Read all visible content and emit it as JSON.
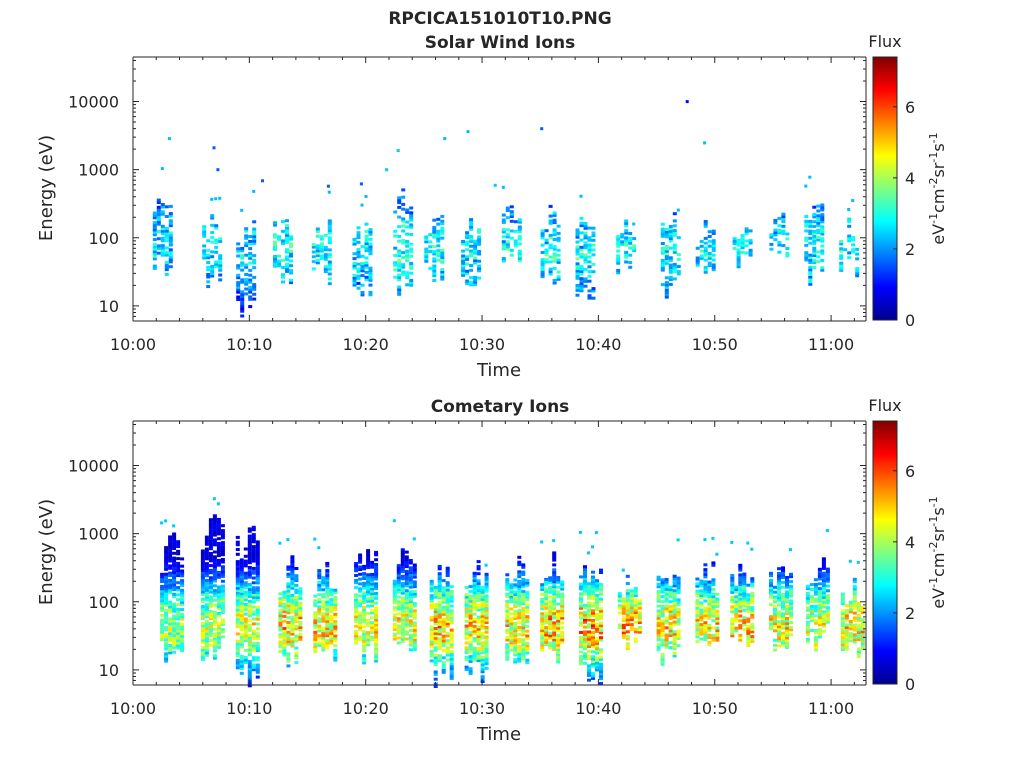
{
  "figure": {
    "filename": "RPCICA151010T10.PNG"
  },
  "colorbar": {
    "label": "Flux",
    "units_parts": [
      "eV",
      "-1",
      "cm",
      "-2",
      "sr",
      "-1",
      "s",
      "-1"
    ],
    "ticks": [
      0,
      2,
      4,
      6
    ],
    "range": [
      0,
      7.4
    ],
    "colormap": "jet"
  },
  "chart_data": [
    {
      "type": "heatmap",
      "title": "Solar Wind Ions",
      "xlabel": "Time",
      "ylabel": "Energy (eV)",
      "x_ticks": [
        "10:00",
        "10:10",
        "10:20",
        "10:30",
        "10:40",
        "10:50",
        "11:00"
      ],
      "y_ticks": [
        "10",
        "100",
        "1000",
        "10000"
      ],
      "yscale": "log",
      "xlim": [
        "10:00",
        "11:03"
      ],
      "ylim": [
        6,
        45000
      ],
      "bursts": [
        {
          "t": "10:02:30",
          "emin": 20,
          "emax": 550,
          "peak": 2.6
        },
        {
          "t": "10:06:45",
          "emin": 20,
          "emax": 260,
          "peak": 2.8
        },
        {
          "t": "10:09:40",
          "emin": 6,
          "emax": 250,
          "peak": 2.6
        },
        {
          "t": "10:12:50",
          "emin": 20,
          "emax": 320,
          "peak": 3.0
        },
        {
          "t": "10:16:10",
          "emin": 20,
          "emax": 280,
          "peak": 2.9
        },
        {
          "t": "10:19:40",
          "emin": 12,
          "emax": 220,
          "peak": 2.7
        },
        {
          "t": "10:23:10",
          "emin": 12,
          "emax": 600,
          "peak": 3.1
        },
        {
          "t": "10:25:50",
          "emin": 20,
          "emax": 300,
          "peak": 2.9
        },
        {
          "t": "10:29:00",
          "emin": 12,
          "emax": 200,
          "peak": 2.7
        },
        {
          "t": "10:32:30",
          "emin": 30,
          "emax": 480,
          "peak": 3.0
        },
        {
          "t": "10:35:50",
          "emin": 20,
          "emax": 500,
          "peak": 3.1
        },
        {
          "t": "10:38:50",
          "emin": 12,
          "emax": 300,
          "peak": 2.9
        },
        {
          "t": "10:42:20",
          "emin": 30,
          "emax": 200,
          "peak": 2.8
        },
        {
          "t": "10:46:10",
          "emin": 12,
          "emax": 300,
          "peak": 2.9
        },
        {
          "t": "10:49:10",
          "emin": 20,
          "emax": 230,
          "peak": 2.7
        },
        {
          "t": "10:52:20",
          "emin": 30,
          "emax": 180,
          "peak": 2.8
        },
        {
          "t": "10:55:30",
          "emin": 35,
          "emax": 250,
          "peak": 2.7
        },
        {
          "t": "10:58:30",
          "emin": 20,
          "emax": 550,
          "peak": 2.9
        },
        {
          "t": "11:01:30",
          "emin": 25,
          "emax": 220,
          "peak": 2.8
        }
      ],
      "isolated_points": [
        {
          "t": "10:03:00",
          "e": 3000,
          "v": 2.3
        },
        {
          "t": "10:06:50",
          "e": 2200,
          "v": 1.6
        },
        {
          "t": "10:07:10",
          "e": 1050,
          "v": 1.6
        },
        {
          "t": "10:11:00",
          "e": 720,
          "v": 1.6
        },
        {
          "t": "10:21:40",
          "e": 1050,
          "v": 2.4
        },
        {
          "t": "10:22:40",
          "e": 2000,
          "v": 2.4
        },
        {
          "t": "10:26:40",
          "e": 3000,
          "v": 2.3
        },
        {
          "t": "10:28:40",
          "e": 3800,
          "v": 2.3
        },
        {
          "t": "10:35:00",
          "e": 4200,
          "v": 1.6
        },
        {
          "t": "10:47:30",
          "e": 10500,
          "v": 1.0
        },
        {
          "t": "10:49:00",
          "e": 2600,
          "v": 2.3
        },
        {
          "t": "10:19:30",
          "e": 650,
          "v": 1.6
        },
        {
          "t": "10:16:40",
          "e": 600,
          "v": 1.6
        },
        {
          "t": "10:31:00",
          "e": 620,
          "v": 2.4
        }
      ]
    },
    {
      "type": "heatmap",
      "title": "Cometary Ions",
      "xlabel": "Time",
      "ylabel": "Energy (eV)",
      "x_ticks": [
        "10:00",
        "10:10",
        "10:20",
        "10:30",
        "10:40",
        "10:50",
        "11:00"
      ],
      "y_ticks": [
        "10",
        "100",
        "1000",
        "10000"
      ],
      "yscale": "log",
      "xlim": [
        "10:00",
        "11:03"
      ],
      "ylim": [
        6,
        45000
      ],
      "bursts": [
        {
          "t": "10:03:20",
          "emin": 12,
          "emax": 1200,
          "peak": 5.0
        },
        {
          "t": "10:06:50",
          "emin": 12,
          "emax": 2300,
          "peak": 5.2
        },
        {
          "t": "10:09:50",
          "emin": 6,
          "emax": 2000,
          "peak": 5.5
        },
        {
          "t": "10:13:30",
          "emin": 12,
          "emax": 500,
          "peak": 6.2
        },
        {
          "t": "10:16:30",
          "emin": 12,
          "emax": 500,
          "peak": 6.0
        },
        {
          "t": "10:20:00",
          "emin": 12,
          "emax": 900,
          "peak": 5.8
        },
        {
          "t": "10:23:20",
          "emin": 12,
          "emax": 850,
          "peak": 5.8
        },
        {
          "t": "10:26:30",
          "emin": 6,
          "emax": 420,
          "peak": 6.2
        },
        {
          "t": "10:29:30",
          "emin": 6,
          "emax": 420,
          "peak": 6.0
        },
        {
          "t": "10:33:00",
          "emin": 12,
          "emax": 600,
          "peak": 6.0
        },
        {
          "t": "10:36:00",
          "emin": 12,
          "emax": 600,
          "peak": 6.4
        },
        {
          "t": "10:39:20",
          "emin": 6,
          "emax": 560,
          "peak": 6.6
        },
        {
          "t": "10:42:40",
          "emin": 20,
          "emax": 360,
          "peak": 6.4
        },
        {
          "t": "10:46:00",
          "emin": 12,
          "emax": 560,
          "peak": 6.0
        },
        {
          "t": "10:49:20",
          "emin": 12,
          "emax": 500,
          "peak": 6.0
        },
        {
          "t": "10:52:20",
          "emin": 20,
          "emax": 500,
          "peak": 6.2
        },
        {
          "t": "10:55:40",
          "emin": 20,
          "emax": 580,
          "peak": 5.8
        },
        {
          "t": "10:58:50",
          "emin": 20,
          "emax": 560,
          "peak": 5.6
        },
        {
          "t": "11:01:50",
          "emin": 12,
          "emax": 250,
          "peak": 6.0
        }
      ],
      "isolated_points": []
    }
  ]
}
